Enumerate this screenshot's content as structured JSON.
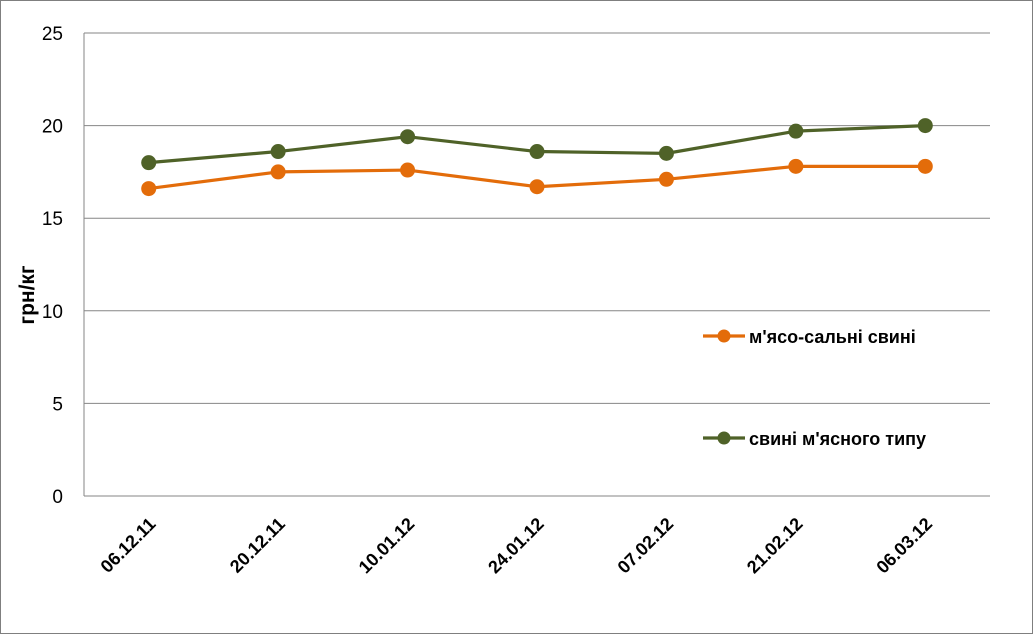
{
  "chart_data": {
    "type": "line",
    "title": "",
    "xlabel": "",
    "ylabel": "грн/кг",
    "ylim": [
      0,
      25
    ],
    "yticks": [
      0,
      5,
      10,
      15,
      20,
      25
    ],
    "grid": true,
    "legend_position": "right",
    "categories": [
      "06.12.11",
      "20.12.11",
      "10.01.12",
      "24.01.12",
      "07.02.12",
      "21.02.12",
      "06.03.12"
    ],
    "series": [
      {
        "name": "м'ясо-сальні свині",
        "color": "#e36c0a",
        "values": [
          16.6,
          17.5,
          17.6,
          16.7,
          17.1,
          17.8,
          17.8
        ]
      },
      {
        "name": "свині м'ясного типу",
        "color": "#4f6228",
        "values": [
          18.0,
          18.6,
          19.4,
          18.6,
          18.5,
          19.7,
          20.0
        ]
      }
    ]
  }
}
